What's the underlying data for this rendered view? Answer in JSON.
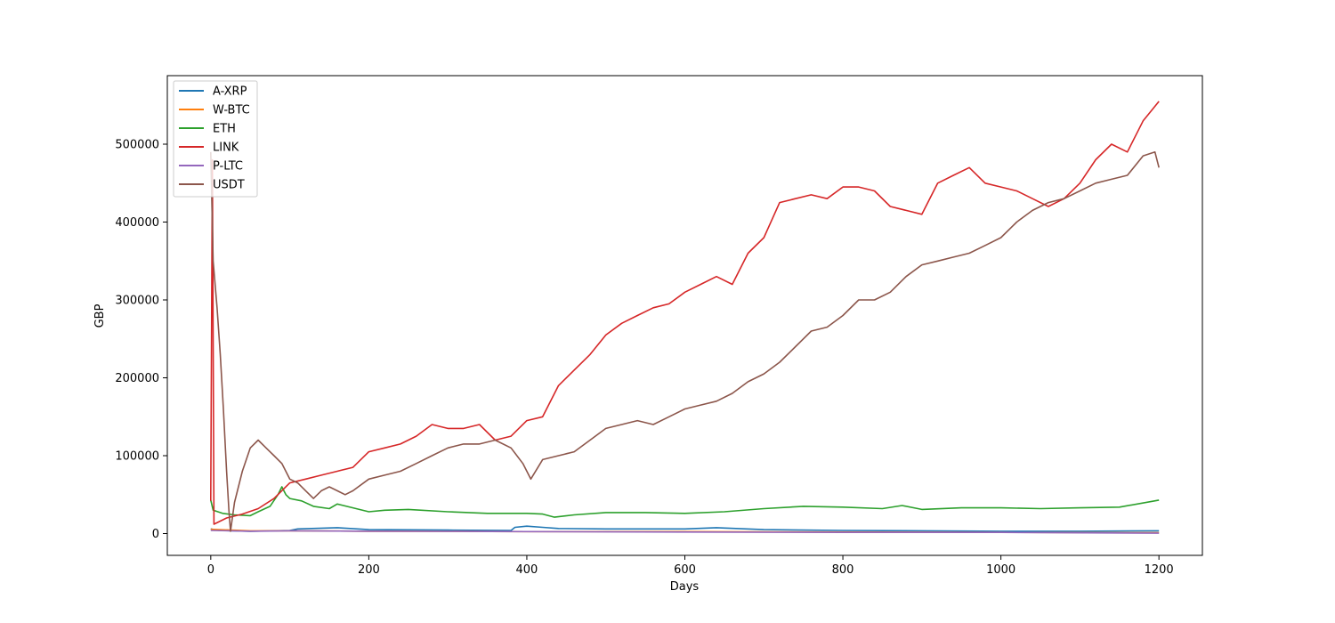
{
  "chart_data": {
    "type": "line",
    "title": "",
    "xlabel": "Days",
    "ylabel": "GBP",
    "xlim": [
      -55,
      1255
    ],
    "ylim": [
      -28000,
      588000
    ],
    "xticks": [
      0,
      200,
      400,
      600,
      800,
      1000,
      1200
    ],
    "yticks": [
      0,
      100000,
      200000,
      300000,
      400000,
      500000
    ],
    "grid": false,
    "legend_location": "upper-left",
    "series": [
      {
        "name": "A-XRP",
        "color": "#1f77b4",
        "points": [
          [
            0,
            6000
          ],
          [
            10,
            4000
          ],
          [
            50,
            3000
          ],
          [
            100,
            4000
          ],
          [
            110,
            6000
          ],
          [
            160,
            7500
          ],
          [
            200,
            5000
          ],
          [
            300,
            4500
          ],
          [
            380,
            4000
          ],
          [
            385,
            8000
          ],
          [
            400,
            9500
          ],
          [
            420,
            8000
          ],
          [
            440,
            6500
          ],
          [
            500,
            6000
          ],
          [
            600,
            6000
          ],
          [
            640,
            7500
          ],
          [
            700,
            5000
          ],
          [
            800,
            4000
          ],
          [
            900,
            3500
          ],
          [
            1000,
            3000
          ],
          [
            1100,
            3000
          ],
          [
            1200,
            3500
          ]
        ]
      },
      {
        "name": "W-BTC",
        "color": "#ff7f0e",
        "points": [
          [
            0,
            5500
          ],
          [
            50,
            3500
          ],
          [
            100,
            3500
          ],
          [
            200,
            3000
          ],
          [
            400,
            2500
          ],
          [
            600,
            2500
          ],
          [
            800,
            2000
          ],
          [
            1000,
            1500
          ],
          [
            1200,
            1000
          ]
        ]
      },
      {
        "name": "ETH",
        "color": "#2ca02c",
        "points": [
          [
            0,
            43000
          ],
          [
            3,
            30000
          ],
          [
            15,
            26000
          ],
          [
            30,
            24000
          ],
          [
            50,
            23000
          ],
          [
            60,
            28000
          ],
          [
            75,
            35000
          ],
          [
            85,
            50000
          ],
          [
            90,
            60000
          ],
          [
            95,
            50000
          ],
          [
            100,
            45000
          ],
          [
            115,
            42000
          ],
          [
            130,
            35000
          ],
          [
            150,
            32000
          ],
          [
            160,
            38000
          ],
          [
            180,
            33000
          ],
          [
            200,
            28000
          ],
          [
            220,
            30000
          ],
          [
            250,
            31000
          ],
          [
            300,
            28000
          ],
          [
            350,
            26000
          ],
          [
            400,
            26000
          ],
          [
            420,
            25000
          ],
          [
            435,
            21000
          ],
          [
            460,
            24000
          ],
          [
            500,
            27000
          ],
          [
            550,
            27000
          ],
          [
            600,
            26000
          ],
          [
            650,
            28000
          ],
          [
            700,
            32000
          ],
          [
            750,
            35000
          ],
          [
            800,
            34000
          ],
          [
            850,
            32000
          ],
          [
            875,
            36000
          ],
          [
            900,
            31000
          ],
          [
            950,
            33000
          ],
          [
            1000,
            33000
          ],
          [
            1050,
            32000
          ],
          [
            1100,
            33000
          ],
          [
            1150,
            34000
          ],
          [
            1200,
            43000
          ]
        ]
      },
      {
        "name": "LINK",
        "color": "#d62728",
        "points": [
          [
            0,
            42000
          ],
          [
            2,
            480000
          ],
          [
            4,
            12000
          ],
          [
            20,
            20000
          ],
          [
            40,
            25000
          ],
          [
            60,
            32000
          ],
          [
            80,
            45000
          ],
          [
            100,
            65000
          ],
          [
            120,
            70000
          ],
          [
            140,
            75000
          ],
          [
            160,
            80000
          ],
          [
            180,
            85000
          ],
          [
            200,
            105000
          ],
          [
            220,
            110000
          ],
          [
            240,
            115000
          ],
          [
            260,
            125000
          ],
          [
            280,
            140000
          ],
          [
            300,
            135000
          ],
          [
            320,
            135000
          ],
          [
            340,
            140000
          ],
          [
            360,
            120000
          ],
          [
            380,
            125000
          ],
          [
            400,
            145000
          ],
          [
            420,
            150000
          ],
          [
            440,
            190000
          ],
          [
            460,
            210000
          ],
          [
            480,
            230000
          ],
          [
            500,
            255000
          ],
          [
            520,
            270000
          ],
          [
            540,
            280000
          ],
          [
            560,
            290000
          ],
          [
            580,
            295000
          ],
          [
            600,
            310000
          ],
          [
            620,
            320000
          ],
          [
            640,
            330000
          ],
          [
            660,
            320000
          ],
          [
            680,
            360000
          ],
          [
            700,
            380000
          ],
          [
            720,
            425000
          ],
          [
            740,
            430000
          ],
          [
            760,
            435000
          ],
          [
            780,
            430000
          ],
          [
            800,
            445000
          ],
          [
            820,
            445000
          ],
          [
            840,
            440000
          ],
          [
            860,
            420000
          ],
          [
            880,
            415000
          ],
          [
            900,
            410000
          ],
          [
            920,
            450000
          ],
          [
            940,
            460000
          ],
          [
            960,
            470000
          ],
          [
            980,
            450000
          ],
          [
            1000,
            445000
          ],
          [
            1020,
            440000
          ],
          [
            1040,
            430000
          ],
          [
            1060,
            420000
          ],
          [
            1080,
            430000
          ],
          [
            1100,
            450000
          ],
          [
            1120,
            480000
          ],
          [
            1140,
            500000
          ],
          [
            1160,
            490000
          ],
          [
            1180,
            530000
          ],
          [
            1200,
            555000
          ]
        ]
      },
      {
        "name": "P-LTC",
        "color": "#9467bd",
        "points": [
          [
            0,
            4000
          ],
          [
            50,
            3000
          ],
          [
            100,
            3500
          ],
          [
            200,
            3000
          ],
          [
            400,
            2500
          ],
          [
            600,
            2000
          ],
          [
            800,
            1500
          ],
          [
            1000,
            1500
          ],
          [
            1200,
            500
          ]
        ]
      },
      {
        "name": "USDT",
        "color": "#8c564b",
        "points": [
          [
            0,
            490000
          ],
          [
            3,
            350000
          ],
          [
            8,
            290000
          ],
          [
            12,
            230000
          ],
          [
            16,
            160000
          ],
          [
            20,
            80000
          ],
          [
            23,
            30000
          ],
          [
            25,
            3000
          ],
          [
            30,
            40000
          ],
          [
            40,
            80000
          ],
          [
            50,
            110000
          ],
          [
            60,
            120000
          ],
          [
            70,
            110000
          ],
          [
            80,
            100000
          ],
          [
            90,
            90000
          ],
          [
            100,
            70000
          ],
          [
            110,
            65000
          ],
          [
            120,
            55000
          ],
          [
            130,
            45000
          ],
          [
            140,
            55000
          ],
          [
            150,
            60000
          ],
          [
            160,
            55000
          ],
          [
            170,
            50000
          ],
          [
            180,
            55000
          ],
          [
            200,
            70000
          ],
          [
            220,
            75000
          ],
          [
            240,
            80000
          ],
          [
            260,
            90000
          ],
          [
            280,
            100000
          ],
          [
            300,
            110000
          ],
          [
            320,
            115000
          ],
          [
            340,
            115000
          ],
          [
            360,
            120000
          ],
          [
            380,
            110000
          ],
          [
            395,
            90000
          ],
          [
            405,
            70000
          ],
          [
            420,
            95000
          ],
          [
            440,
            100000
          ],
          [
            460,
            105000
          ],
          [
            480,
            120000
          ],
          [
            500,
            135000
          ],
          [
            520,
            140000
          ],
          [
            540,
            145000
          ],
          [
            560,
            140000
          ],
          [
            580,
            150000
          ],
          [
            600,
            160000
          ],
          [
            620,
            165000
          ],
          [
            640,
            170000
          ],
          [
            660,
            180000
          ],
          [
            680,
            195000
          ],
          [
            700,
            205000
          ],
          [
            720,
            220000
          ],
          [
            740,
            240000
          ],
          [
            760,
            260000
          ],
          [
            780,
            265000
          ],
          [
            800,
            280000
          ],
          [
            820,
            300000
          ],
          [
            840,
            300000
          ],
          [
            860,
            310000
          ],
          [
            880,
            330000
          ],
          [
            900,
            345000
          ],
          [
            920,
            350000
          ],
          [
            940,
            355000
          ],
          [
            960,
            360000
          ],
          [
            980,
            370000
          ],
          [
            1000,
            380000
          ],
          [
            1020,
            400000
          ],
          [
            1040,
            415000
          ],
          [
            1060,
            425000
          ],
          [
            1080,
            430000
          ],
          [
            1100,
            440000
          ],
          [
            1120,
            450000
          ],
          [
            1140,
            455000
          ],
          [
            1160,
            460000
          ],
          [
            1180,
            485000
          ],
          [
            1195,
            490000
          ],
          [
            1200,
            470000
          ]
        ]
      }
    ]
  }
}
